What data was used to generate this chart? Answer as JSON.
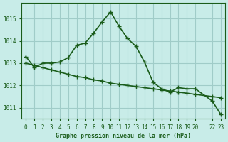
{
  "line1_x": [
    0,
    1,
    2,
    3,
    4,
    5,
    6,
    7,
    8,
    9,
    10,
    11,
    12,
    13,
    14,
    15,
    16,
    17,
    18,
    19,
    20,
    22,
    23
  ],
  "line1_y": [
    1013.3,
    1012.8,
    1013.0,
    1013.0,
    1013.05,
    1013.25,
    1013.8,
    1013.9,
    1014.35,
    1014.85,
    1015.3,
    1014.65,
    1014.1,
    1013.75,
    1013.05,
    1012.15,
    1011.85,
    1011.7,
    1011.9,
    1011.85,
    1011.85,
    1011.3,
    1010.7
  ],
  "line2_x": [
    0,
    1,
    2,
    3,
    4,
    5,
    6,
    7,
    8,
    9,
    10,
    11,
    12,
    13,
    14,
    15,
    16,
    17,
    18,
    19,
    20,
    22,
    23
  ],
  "line2_y": [
    1013.0,
    1012.9,
    1012.8,
    1012.7,
    1012.6,
    1012.5,
    1012.4,
    1012.35,
    1012.25,
    1012.2,
    1012.1,
    1012.05,
    1012.0,
    1011.95,
    1011.9,
    1011.85,
    1011.8,
    1011.75,
    1011.7,
    1011.65,
    1011.6,
    1011.5,
    1011.45
  ],
  "line_color": "#1a5c1a",
  "marker": "+",
  "markersize": 5,
  "linewidth": 1.2,
  "bg_color": "#c8ece8",
  "grid_color": "#a0ccc8",
  "text_color": "#1a5c1a",
  "xlabel": "Graphe pression niveau de la mer (hPa)",
  "xticks": [
    0,
    1,
    2,
    3,
    4,
    5,
    6,
    7,
    8,
    9,
    10,
    11,
    12,
    13,
    14,
    15,
    16,
    17,
    18,
    19,
    20,
    22,
    23
  ],
  "xticklabels": [
    "0",
    "1",
    "2",
    "3",
    "4",
    "5",
    "6",
    "7",
    "8",
    "9",
    "10",
    "11",
    "12",
    "13",
    "14",
    "15",
    "16",
    "17",
    "18",
    "19",
    "20",
    "22",
    "23"
  ],
  "ylim": [
    1010.5,
    1015.7
  ],
  "yticks": [
    1011,
    1012,
    1013,
    1014,
    1015
  ],
  "xlim": [
    -0.5,
    23.5
  ]
}
